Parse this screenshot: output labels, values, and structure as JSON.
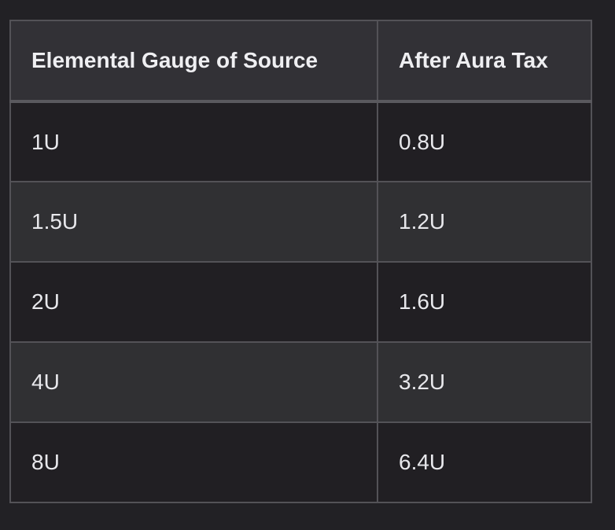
{
  "table": {
    "headers": [
      "Elemental Gauge of Source",
      "After Aura Tax"
    ],
    "rows": [
      [
        "1U",
        "0.8U"
      ],
      [
        "1.5U",
        "1.2U"
      ],
      [
        "2U",
        "1.6U"
      ],
      [
        "4U",
        "3.2U"
      ],
      [
        "8U",
        "6.4U"
      ]
    ]
  }
}
